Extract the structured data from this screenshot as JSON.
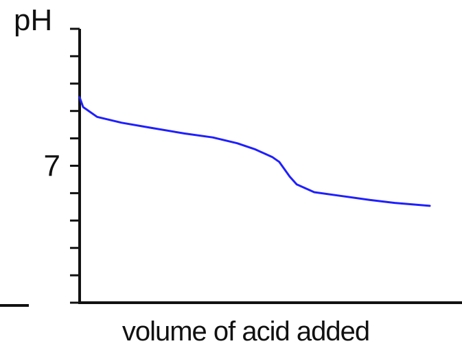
{
  "chart_data": {
    "type": "line",
    "title": "",
    "ylabel": "pH",
    "xlabel": "volume of acid added",
    "y_ticks_labeled": [
      {
        "value": 7,
        "label": "7"
      }
    ],
    "y_tick_count_minor": 11,
    "series": [
      {
        "color": "#1f1fff",
        "points": [
          [
            0.0,
            10.5
          ],
          [
            0.01,
            10.0
          ],
          [
            0.05,
            9.5
          ],
          [
            0.12,
            9.2
          ],
          [
            0.2,
            8.95
          ],
          [
            0.3,
            8.65
          ],
          [
            0.38,
            8.45
          ],
          [
            0.45,
            8.15
          ],
          [
            0.5,
            7.85
          ],
          [
            0.55,
            7.45
          ],
          [
            0.57,
            7.2
          ],
          [
            0.6,
            6.45
          ],
          [
            0.62,
            6.05
          ],
          [
            0.67,
            5.65
          ],
          [
            0.75,
            5.45
          ],
          [
            0.83,
            5.25
          ],
          [
            0.9,
            5.1
          ],
          [
            1.0,
            4.95
          ]
        ]
      }
    ],
    "xlim": [
      0,
      1.1
    ],
    "ylim": [
      0,
      14
    ]
  }
}
